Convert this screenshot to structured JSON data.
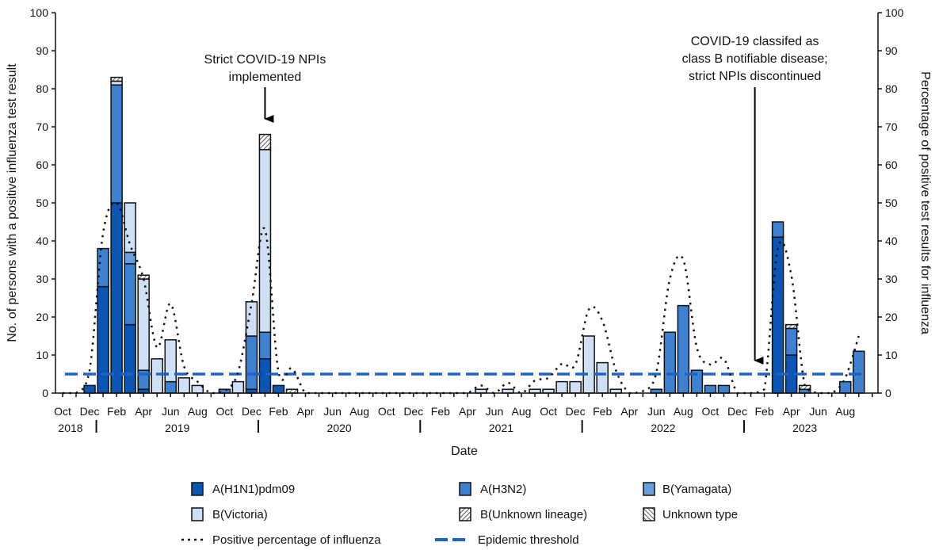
{
  "chart_data": {
    "type": "bar",
    "stacked": true,
    "xlabel": "Date",
    "ylabel": "No. of persons with a positive influenza test result",
    "y2label": "Percentage of positive test results for influenza",
    "ylim": [
      0,
      100
    ],
    "y2lim": [
      0,
      100
    ],
    "yticks": [
      "0",
      "10",
      "20",
      "30",
      "40",
      "50",
      "60",
      "70",
      "80",
      "90",
      "100"
    ],
    "grid": false,
    "legend_position": "bottom",
    "x_tick_labels": [
      "Oct",
      "Dec",
      "Feb",
      "Apr",
      "Jun",
      "Aug",
      "Oct",
      "Dec",
      "Feb",
      "Apr",
      "Jun",
      "Aug",
      "Oct",
      "Dec",
      "Feb",
      "Apr",
      "Jun",
      "Aug",
      "Oct",
      "Dec",
      "Feb",
      "Apr",
      "Jun",
      "Aug",
      "Oct",
      "Dec",
      "Feb",
      "Apr",
      "Jun",
      "Aug"
    ],
    "year_labels": [
      "2018",
      "2019",
      "2020",
      "2021",
      "2022",
      "2023"
    ],
    "categories": [
      "2018-10",
      "2018-11",
      "2018-12",
      "2019-01",
      "2019-02",
      "2019-03",
      "2019-04",
      "2019-05",
      "2019-06",
      "2019-07",
      "2019-08",
      "2019-09",
      "2019-10",
      "2019-11",
      "2019-12",
      "2020-01",
      "2020-02",
      "2020-03",
      "2020-04",
      "2020-05",
      "2020-06",
      "2020-07",
      "2020-08",
      "2020-09",
      "2020-10",
      "2020-11",
      "2020-12",
      "2021-01",
      "2021-02",
      "2021-03",
      "2021-04",
      "2021-05",
      "2021-06",
      "2021-07",
      "2021-08",
      "2021-09",
      "2021-10",
      "2021-11",
      "2021-12",
      "2022-01",
      "2022-02",
      "2022-03",
      "2022-04",
      "2022-05",
      "2022-06",
      "2022-07",
      "2022-08",
      "2022-09",
      "2022-10",
      "2022-11",
      "2022-12",
      "2023-01",
      "2023-02",
      "2023-03",
      "2023-04",
      "2023-05",
      "2023-06",
      "2023-07",
      "2023-08",
      "2023-09"
    ],
    "series": [
      {
        "name": "A(H1N1)pdm09",
        "color": "#0b55b5",
        "values": [
          0,
          0,
          2,
          28,
          50,
          18,
          1,
          0,
          0,
          0,
          0,
          0,
          0,
          0,
          1,
          9,
          2,
          0,
          0,
          0,
          0,
          0,
          0,
          0,
          0,
          0,
          0,
          0,
          0,
          0,
          0,
          0,
          0,
          0,
          0,
          0,
          0,
          0,
          0,
          0,
          0,
          0,
          0,
          0,
          0,
          0,
          0,
          0,
          0,
          0,
          0,
          0,
          0,
          41,
          10,
          0,
          0,
          0,
          0,
          0
        ]
      },
      {
        "name": "A(H3N2)",
        "color": "#3f81d1",
        "values": [
          0,
          0,
          0,
          10,
          31,
          16,
          5,
          0,
          3,
          0,
          0,
          0,
          1,
          0,
          14,
          7,
          0,
          0,
          0,
          0,
          0,
          0,
          0,
          0,
          0,
          0,
          0,
          0,
          0,
          0,
          0,
          0,
          0,
          0,
          0,
          0,
          0,
          0,
          0,
          0,
          0,
          0,
          0,
          0,
          1,
          16,
          23,
          6,
          2,
          2,
          0,
          0,
          0,
          4,
          7,
          1,
          0,
          0,
          3,
          11
        ]
      },
      {
        "name": "B(Yamagata)",
        "color": "#6b9fdc",
        "values": [
          0,
          0,
          0,
          0,
          0,
          3,
          0,
          0,
          0,
          0,
          0,
          0,
          0,
          0,
          0,
          0,
          0,
          0,
          0,
          0,
          0,
          0,
          0,
          0,
          0,
          0,
          0,
          0,
          0,
          0,
          0,
          0,
          0,
          0,
          0,
          0,
          0,
          0,
          0,
          0,
          0,
          0,
          0,
          0,
          0,
          0,
          0,
          0,
          0,
          0,
          0,
          0,
          0,
          0,
          0,
          0,
          0,
          0,
          0,
          0
        ]
      },
      {
        "name": "B(Victoria)",
        "color": "#cfe0f4",
        "values": [
          0,
          0,
          0,
          0,
          1,
          13,
          24,
          9,
          11,
          4,
          2,
          0,
          0,
          3,
          9,
          48,
          0,
          0,
          0,
          0,
          0,
          0,
          0,
          0,
          0,
          0,
          0,
          0,
          0,
          0,
          0,
          1,
          0,
          1,
          0,
          1,
          1,
          3,
          3,
          15,
          8,
          1,
          0,
          0,
          0,
          0,
          0,
          0,
          0,
          0,
          0,
          0,
          0,
          0,
          0,
          0,
          0,
          0,
          0,
          0
        ]
      },
      {
        "name": "B(Unknown lineage)",
        "color": "hatch-right",
        "values": [
          0,
          0,
          0,
          0,
          1,
          0,
          1,
          0,
          0,
          0,
          0,
          0,
          0,
          0,
          0,
          4,
          0,
          1,
          0,
          0,
          0,
          0,
          0,
          0,
          0,
          0,
          0,
          0,
          0,
          0,
          0,
          0,
          0,
          0,
          0,
          0,
          0,
          0,
          0,
          0,
          0,
          0,
          0,
          0,
          0,
          0,
          0,
          0,
          0,
          0,
          0,
          0,
          0,
          0,
          1,
          1,
          0,
          0,
          0,
          0
        ]
      },
      {
        "name": "Unknown type",
        "color": "hatch-left",
        "values": [
          0,
          0,
          0,
          0,
          0,
          0,
          0,
          0,
          0,
          0,
          0,
          0,
          0,
          0,
          0,
          0,
          0,
          0,
          0,
          0,
          0,
          0,
          0,
          0,
          0,
          0,
          0,
          0,
          0,
          0,
          0,
          0,
          0,
          0,
          0,
          0,
          0,
          0,
          0,
          0,
          0,
          0,
          0,
          0,
          0,
          0,
          0,
          0,
          0,
          0,
          0,
          0,
          0,
          0,
          0,
          0,
          0,
          0,
          0,
          0
        ]
      }
    ],
    "line_series": {
      "name": "Positive percentage of influenza",
      "axis": "right",
      "values": [
        0,
        0,
        6,
        42,
        50,
        39,
        30,
        12,
        23.5,
        7,
        3,
        0,
        0.5,
        5.5,
        23.5,
        43,
        5.5,
        6.5,
        0,
        0,
        0,
        0,
        0,
        0,
        0,
        0,
        0,
        0,
        0,
        0,
        0,
        2,
        0,
        2.7,
        0,
        3.3,
        4,
        7.7,
        7.5,
        22,
        19,
        6,
        0,
        0.5,
        5.4,
        30,
        35,
        12,
        7.5,
        9,
        0,
        0,
        1,
        38,
        31,
        2,
        0,
        0,
        4,
        15
      ]
    },
    "threshold": {
      "name": "Epidemic  threshold",
      "value": 5,
      "color": "#1f63c6"
    },
    "annotations": [
      {
        "lines": [
          "Strict COVID-19 NPIs",
          "implemented"
        ],
        "at": "2020-01"
      },
      {
        "lines": [
          "COVID-19 classifed as",
          "class B notifiable disease;",
          "strict NPIs discontinued"
        ],
        "at": "2023-01"
      }
    ]
  }
}
